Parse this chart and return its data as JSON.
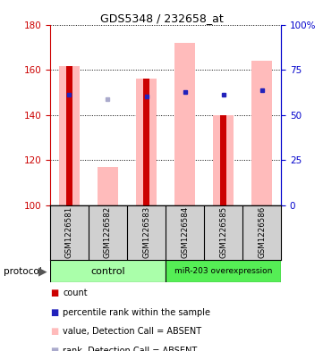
{
  "title": "GDS5348 / 232658_at",
  "samples": [
    "GSM1226581",
    "GSM1226582",
    "GSM1226583",
    "GSM1226584",
    "GSM1226585",
    "GSM1226586"
  ],
  "ylim": [
    100,
    180
  ],
  "yticks_left": [
    100,
    120,
    140,
    160,
    180
  ],
  "yticks_right": [
    0,
    25,
    50,
    75,
    100
  ],
  "right_axis_labels": [
    "0",
    "25",
    "50",
    "75",
    "100%"
  ],
  "groups": [
    {
      "label": "control",
      "samples": [
        0,
        1,
        2
      ],
      "color": "#aaffaa"
    },
    {
      "label": "miR-203 overexpression",
      "samples": [
        3,
        4,
        5
      ],
      "color": "#55ee55"
    }
  ],
  "bar_absent_value": [
    161.5,
    117.0,
    156.0,
    172.0,
    140.0,
    164.0
  ],
  "bar_absent_color": "#ffbbbb",
  "red_bar_value": [
    161.5,
    null,
    156.0,
    null,
    140.0,
    null
  ],
  "red_bar_color": "#cc0000",
  "blue_square_value": [
    149.0,
    null,
    148.0,
    150.0,
    149.0,
    151.0
  ],
  "blue_sq_absent_value": [
    null,
    147.0,
    null,
    null,
    null,
    null
  ],
  "blue_square_color": "#2222bb",
  "blue_sq_absent_color": "#aaaacc",
  "legend_items": [
    {
      "label": "count",
      "color": "#cc0000"
    },
    {
      "label": "percentile rank within the sample",
      "color": "#2222bb"
    },
    {
      "label": "value, Detection Call = ABSENT",
      "color": "#ffbbbb"
    },
    {
      "label": "rank, Detection Call = ABSENT",
      "color": "#aaaacc"
    }
  ],
  "protocol_label": "protocol",
  "left_axis_color": "#cc0000",
  "right_axis_color": "#0000cc",
  "plot_bg": "#ffffff"
}
